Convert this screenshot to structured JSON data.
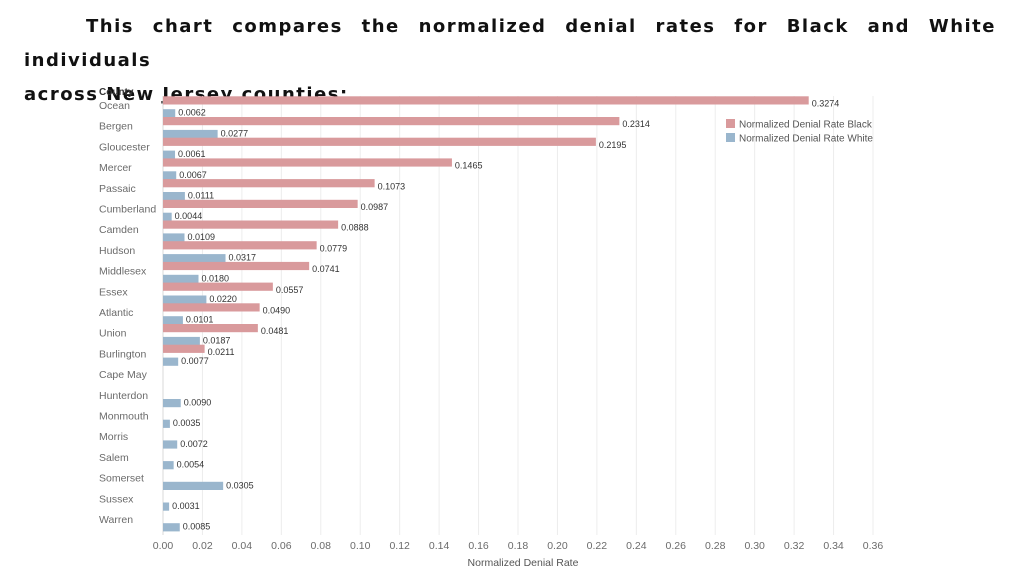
{
  "intro": {
    "line1": "This chart compares the normalized denial rates for Black and White individuals",
    "line2": "across New Jersey counties:"
  },
  "colors": {
    "black_series": "#d99a9c",
    "white_series": "#9ab6cd",
    "grid": "#ececec",
    "axis_text": "#6b6b6b",
    "label_text": "#333333"
  },
  "chart_data": {
    "type": "bar",
    "orientation": "horizontal",
    "row_header": "County",
    "xlabel": "Normalized Denial Rate",
    "xlim": [
      0,
      0.36
    ],
    "ticks": [
      "0.00",
      "0.02",
      "0.04",
      "0.06",
      "0.08",
      "0.10",
      "0.12",
      "0.14",
      "0.16",
      "0.18",
      "0.20",
      "0.22",
      "0.24",
      "0.26",
      "0.28",
      "0.30",
      "0.32",
      "0.34",
      "0.36"
    ],
    "grid": true,
    "legend_position": "top-right",
    "categories": [
      "Ocean",
      "Bergen",
      "Gloucester",
      "Mercer",
      "Passaic",
      "Cumberland",
      "Camden",
      "Hudson",
      "Middlesex",
      "Essex",
      "Atlantic",
      "Union",
      "Burlington",
      "Cape May",
      "Hunterdon",
      "Monmouth",
      "Morris",
      "Salem",
      "Somerset",
      "Sussex",
      "Warren"
    ],
    "series": [
      {
        "name": "Normalized Denial Rate Black",
        "values": [
          0.3274,
          0.2314,
          0.2195,
          0.1465,
          0.1073,
          0.0987,
          0.0888,
          0.0779,
          0.0741,
          0.0557,
          0.049,
          0.0481,
          0.0211,
          null,
          null,
          null,
          null,
          null,
          null,
          null,
          null
        ],
        "labels": [
          "0.3274",
          "0.2314",
          "0.2195",
          "0.1465",
          "0.1073",
          "0.0987",
          "0.0888",
          "0.0779",
          "0.0741",
          "0.0557",
          "0.0490",
          "0.0481",
          "0.0211",
          null,
          null,
          null,
          null,
          null,
          null,
          null,
          null
        ]
      },
      {
        "name": "Normalized Denial Rate White",
        "values": [
          0.0062,
          0.0277,
          0.0061,
          0.0067,
          0.0111,
          0.0044,
          0.0109,
          0.0317,
          0.018,
          0.022,
          0.0101,
          0.0187,
          0.0077,
          null,
          0.009,
          0.0035,
          0.0072,
          0.0054,
          0.0305,
          0.0031,
          0.0085
        ],
        "labels": [
          "0.0062",
          "0.0277",
          "0.0061",
          "0.0067",
          "0.0111",
          "0.0044",
          "0.0109",
          "0.0317",
          "0.0180",
          "0.0220",
          "0.0101",
          "0.0187",
          "0.0077",
          null,
          "0.0090",
          "0.0035",
          "0.0072",
          "0.0054",
          "0.0305",
          "0.0031",
          "0.0085"
        ]
      }
    ]
  }
}
